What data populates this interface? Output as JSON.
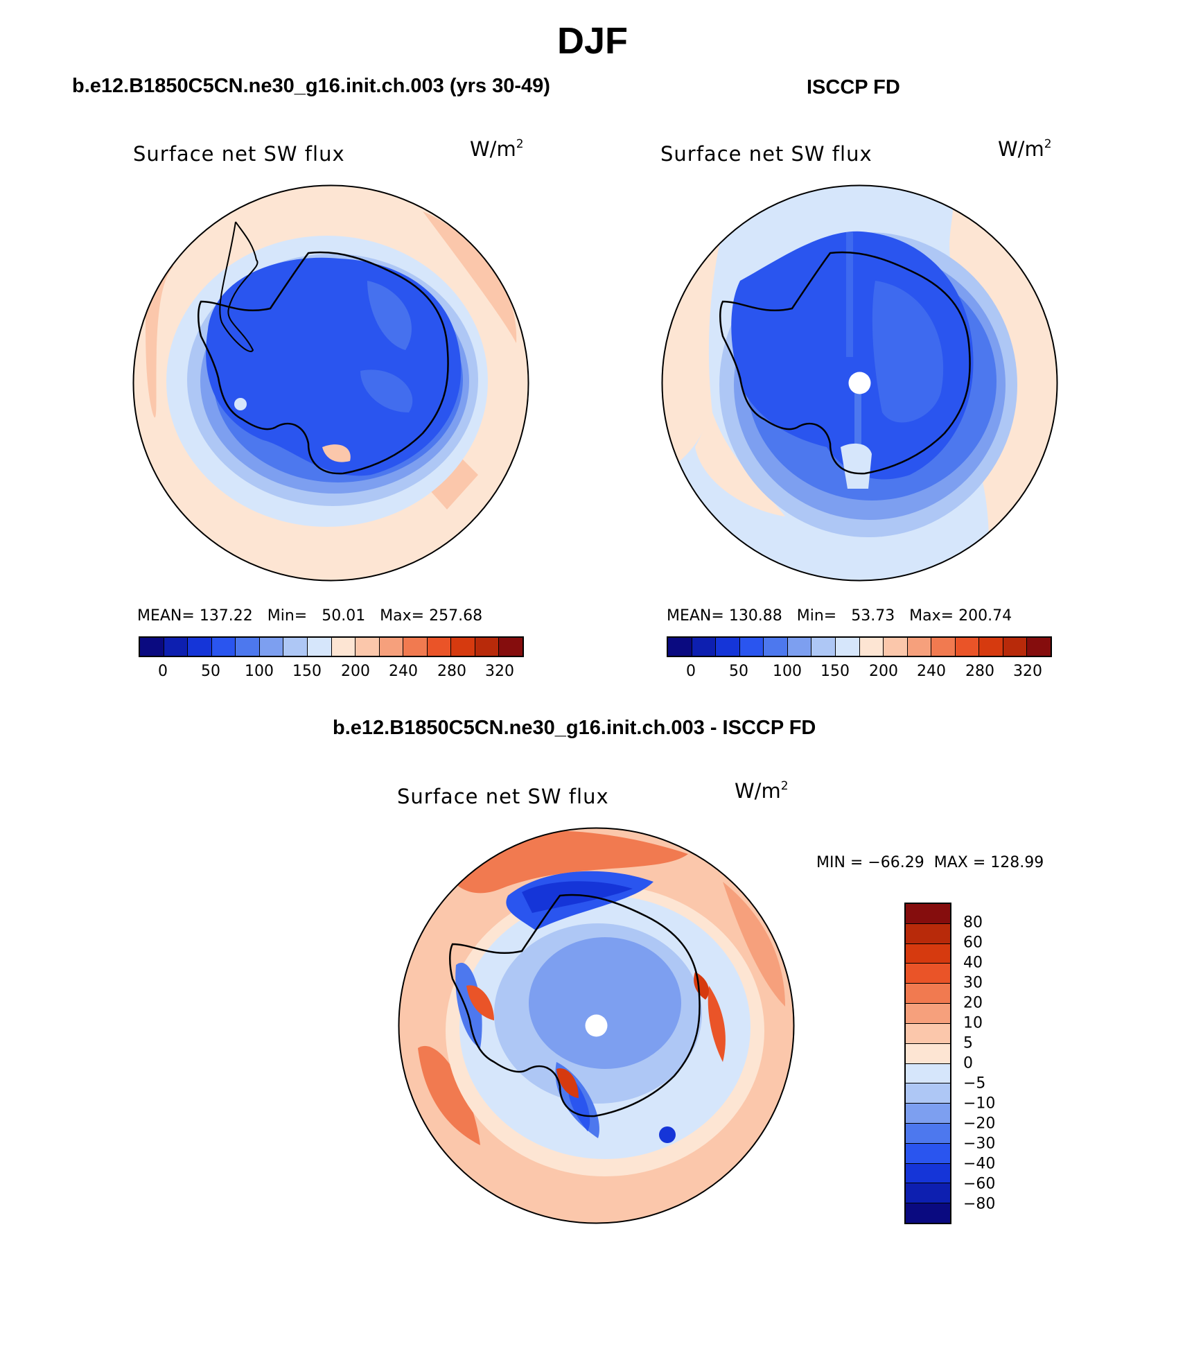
{
  "page_title": "DJF",
  "panels": [
    {
      "heading": "b.e12.B1850C5CN.ne30_g16.init.ch.003 (yrs 30-49)",
      "variable_label": "Surface net SW flux",
      "units": "W/m",
      "units_exp": "2",
      "stats": "MEAN= 137.22   Min=   50.01   Max= 257.68"
    },
    {
      "heading": "ISCCP FD",
      "variable_label": "Surface net SW flux",
      "units": "W/m",
      "units_exp": "2",
      "stats": "MEAN= 130.88   Min=   53.73   Max= 200.74"
    },
    {
      "heading": "b.e12.B1850C5CN.ne30_g16.init.ch.003 - ISCCP FD",
      "variable_label": "Surface net SW flux",
      "units": "W/m",
      "units_exp": "2",
      "stats": "MIN = −66.29  MAX = 128.99"
    }
  ],
  "abs_colorbar": {
    "colors": [
      "#0a0a80",
      "#0d1fb0",
      "#1535d8",
      "#2a55ef",
      "#4d78ee",
      "#7d9ff0",
      "#aec7f5",
      "#d6e6fb",
      "#fde5d3",
      "#fbc7ab",
      "#f6a07c",
      "#f17a50",
      "#ea5428",
      "#d63a0f",
      "#b82a0a",
      "#850d0d"
    ],
    "tick_labels": [
      "0",
      "50",
      "100",
      "150",
      "200",
      "240",
      "280",
      "320"
    ]
  },
  "diff_colorbar": {
    "colors": [
      "#0a0a80",
      "#0d1fb0",
      "#1535d8",
      "#2a55ef",
      "#4d78ee",
      "#7d9ff0",
      "#aec7f5",
      "#d6e6fb",
      "#fde5d3",
      "#fbc7ab",
      "#f6a07c",
      "#f17a50",
      "#ea5428",
      "#d63a0f",
      "#b82a0a",
      "#850d0d"
    ],
    "tick_labels": [
      "−80",
      "−60",
      "−40",
      "−30",
      "−20",
      "−10",
      "−5",
      "0",
      "5",
      "10",
      "20",
      "30",
      "40",
      "60",
      "80"
    ]
  }
}
